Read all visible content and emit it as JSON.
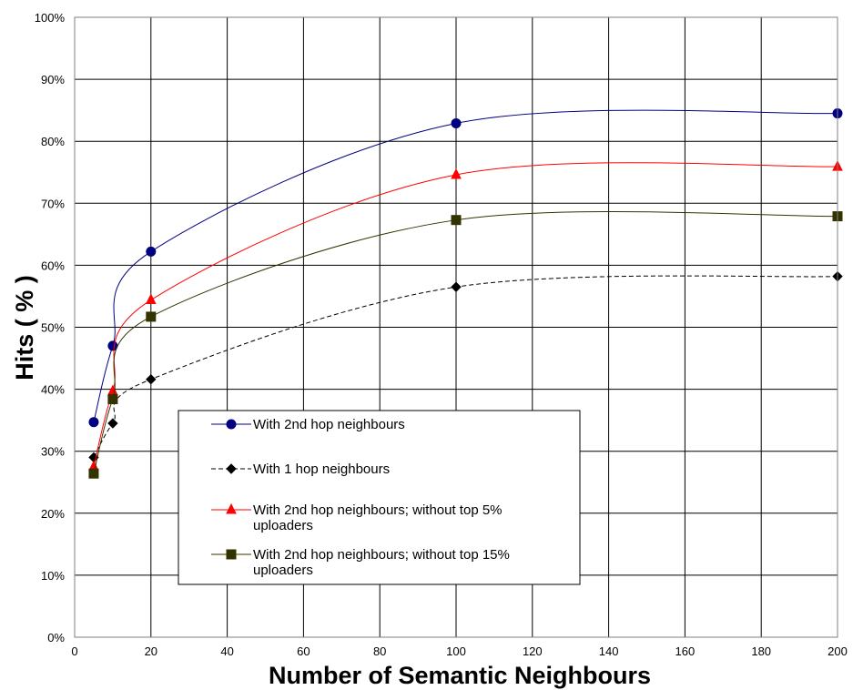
{
  "chart_data": {
    "type": "line",
    "xlabel": "Number of Semantic Neighbours",
    "ylabel": "Hits ( % )",
    "xlim": [
      0,
      200
    ],
    "ylim": [
      0,
      100
    ],
    "x_ticks": [
      "0",
      "20",
      "40",
      "60",
      "80",
      "100",
      "120",
      "140",
      "160",
      "180",
      "200"
    ],
    "y_ticks": [
      "0%",
      "10%",
      "20%",
      "30%",
      "40%",
      "50%",
      "60%",
      "70%",
      "80%",
      "90%",
      "100%"
    ],
    "grid": true,
    "legend_position": "center-left",
    "x": [
      5,
      10,
      20,
      100,
      200
    ],
    "series": [
      {
        "name": "With 2nd hop neighbours",
        "legend_lines": [
          "With 2nd hop neighbours"
        ],
        "values": [
          34.7,
          47.0,
          62.2,
          82.9,
          84.5
        ],
        "color": "#000080",
        "marker": "circle",
        "dash": "solid"
      },
      {
        "name": "With 1 hop neighbours",
        "legend_lines": [
          "With 1 hop neighbours"
        ],
        "values": [
          29.0,
          34.5,
          41.6,
          56.5,
          58.2
        ],
        "color": "#000000",
        "marker": "diamond",
        "dash": "dashed"
      },
      {
        "name": "With 2nd hop neighbours; without top 5% uploaders",
        "legend_lines": [
          "With 2nd hop neighbours; without top 5%",
          "uploaders"
        ],
        "values": [
          27.5,
          39.7,
          54.4,
          74.6,
          75.9
        ],
        "color": "#ff0000",
        "marker": "triangle",
        "dash": "solid"
      },
      {
        "name": "With 2nd hop neighbours; without top 15% uploaders",
        "legend_lines": [
          "With 2nd hop neighbours; without top 15%",
          "uploaders"
        ],
        "values": [
          26.4,
          38.4,
          51.7,
          67.3,
          67.9
        ],
        "color": "#333300",
        "marker": "square",
        "dash": "solid"
      }
    ]
  }
}
